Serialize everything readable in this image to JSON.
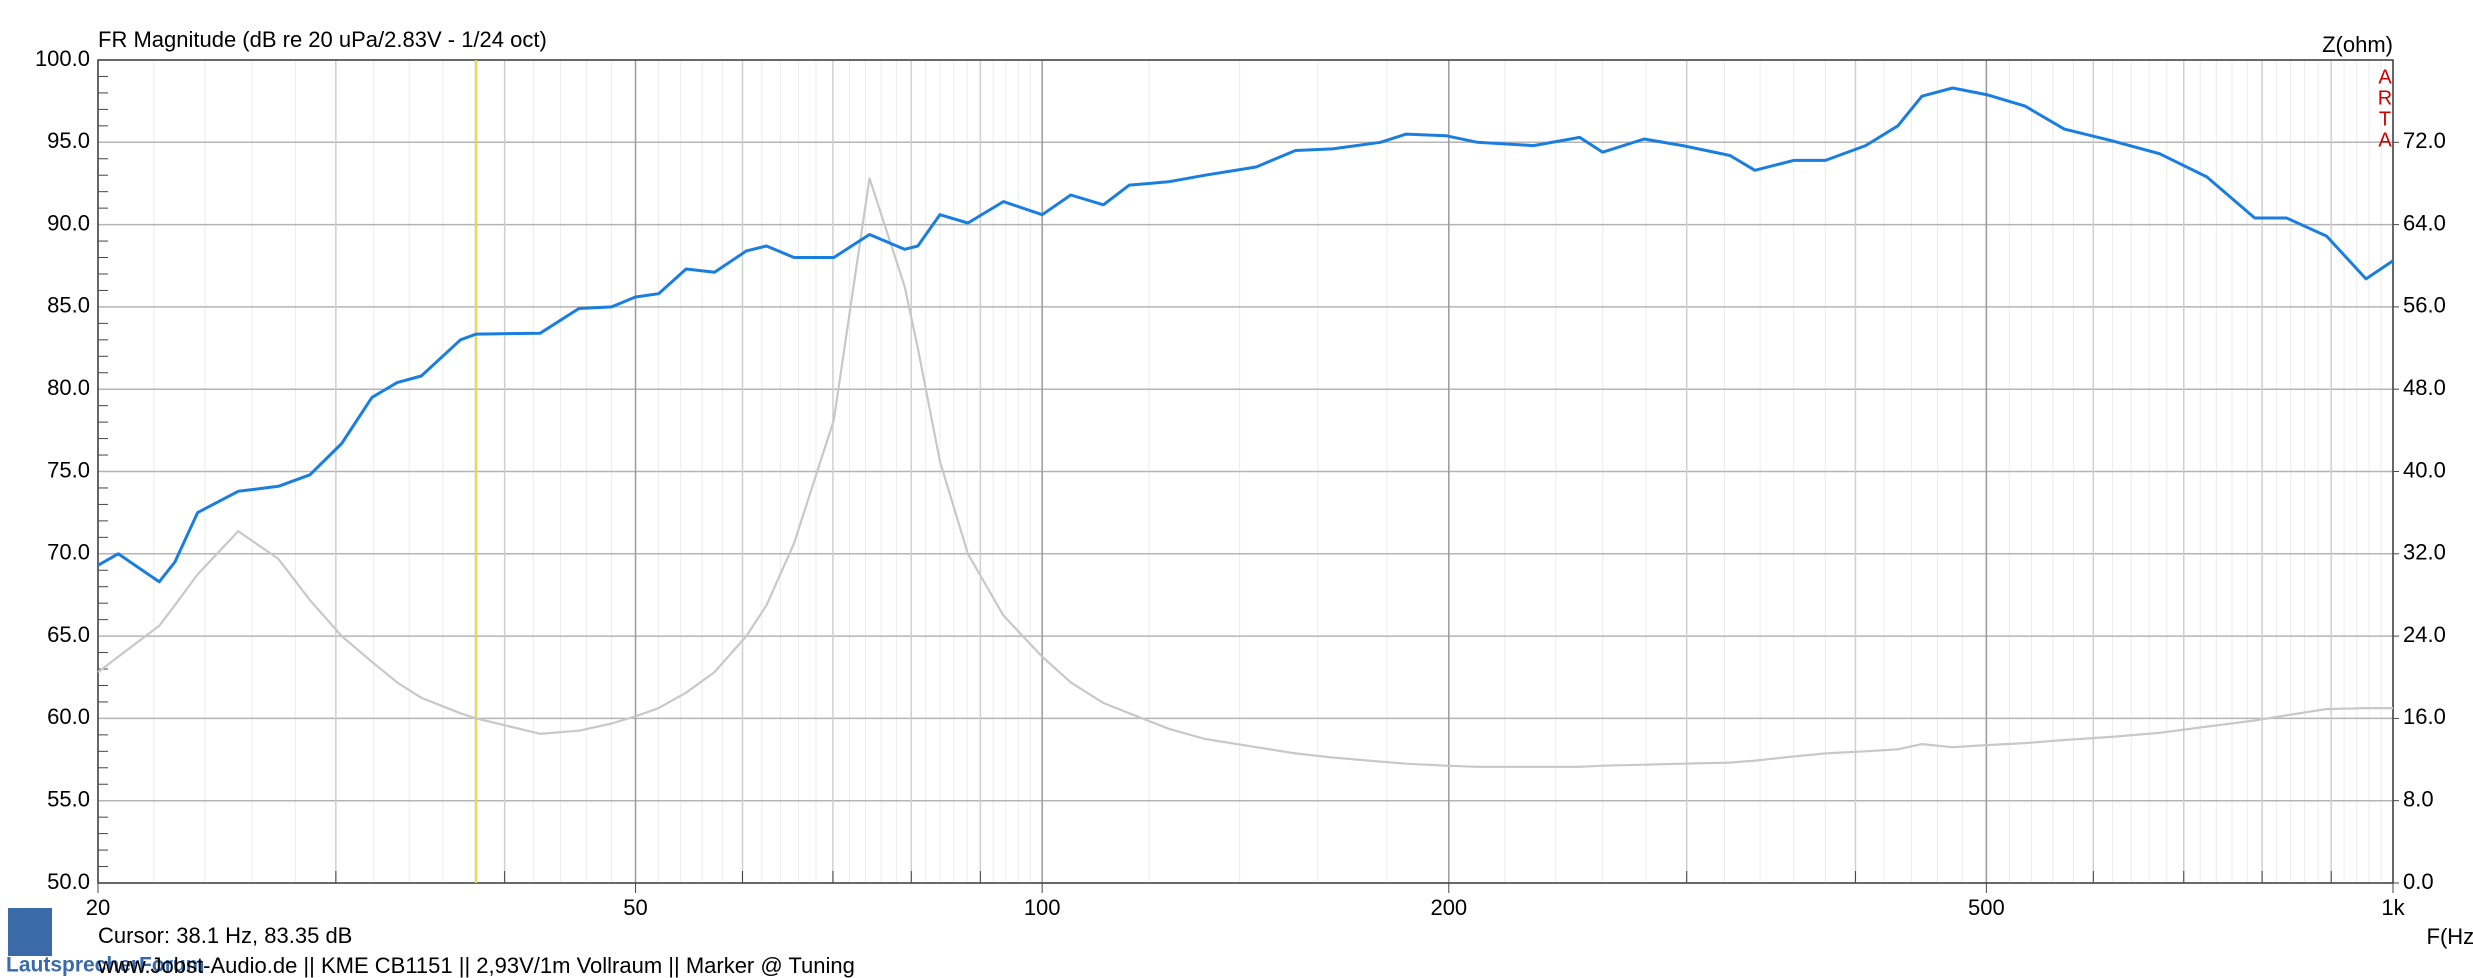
{
  "chart_data": {
    "type": "line",
    "title": "FR Magnitude (dB re 20 uPa/2.83V - 1/24 oct)",
    "y2_label": "Z(ohm)",
    "x_label": "F(Hz)",
    "brand": [
      "A",
      "R",
      "T",
      "A"
    ],
    "cursor_text": "Cursor: 38.1 Hz, 83.35 dB",
    "cursor_x": 38.1,
    "cursor_color": "#e8d84a",
    "footer": "www.Jobst-Audio.de  ||  KME CB1151  ||  2,93V/1m Vollraum  ||  Marker @ Tuning",
    "logo_text": "LautsprecherForum",
    "log_x": true,
    "grid": true,
    "xlim": [
      20,
      1000
    ],
    "xticks": [
      20,
      50,
      100,
      200,
      500,
      {
        "value": 1000,
        "label": "1k"
      }
    ],
    "xminor": [
      30,
      40,
      60,
      70,
      80,
      90,
      300,
      400,
      600,
      700,
      800,
      900
    ],
    "ylim": [
      50,
      100
    ],
    "yticks": [
      {
        "value": 50,
        "label": "50.0"
      },
      {
        "value": 55,
        "label": "55.0"
      },
      {
        "value": 60,
        "label": "60.0"
      },
      {
        "value": 65,
        "label": "65.0"
      },
      {
        "value": 70,
        "label": "70.0"
      },
      {
        "value": 75,
        "label": "75.0"
      },
      {
        "value": 80,
        "label": "80.0"
      },
      {
        "value": 85,
        "label": "85.0"
      },
      {
        "value": 90,
        "label": "90.0"
      },
      {
        "value": 95,
        "label": "95.0"
      },
      {
        "value": 100,
        "label": "100.0"
      }
    ],
    "y2lim": [
      0,
      80
    ],
    "y2ticks": [
      {
        "value": 0,
        "label": "0.0"
      },
      {
        "value": 8,
        "label": "8.0"
      },
      {
        "value": 16,
        "label": "16.0"
      },
      {
        "value": 24,
        "label": "24.0"
      },
      {
        "value": 32,
        "label": "32.0"
      },
      {
        "value": 40,
        "label": "40.0"
      },
      {
        "value": 48,
        "label": "48.0"
      },
      {
        "value": 56,
        "label": "56.0"
      },
      {
        "value": 64,
        "label": "64.0"
      },
      {
        "value": 72,
        "label": "72.0"
      }
    ],
    "x": [
      20,
      20.7,
      22.2,
      22.8,
      23.7,
      25.4,
      27.2,
      28.7,
      30.3,
      31.9,
      33.3,
      34.7,
      37.1,
      38.1,
      42.5,
      45.4,
      48,
      50,
      52,
      54.5,
      57.2,
      60.4,
      62.5,
      65.5,
      70.1,
      74.5,
      79.1,
      80.9,
      84,
      88.1,
      93.6,
      100,
      105,
      111,
      116,
      124,
      132,
      144,
      154,
      164,
      178,
      186,
      199,
      210,
      231,
      250,
      260,
      279,
      298,
      323,
      337,
      360,
      380,
      407,
      430,
      448,
      472,
      500,
      534,
      571,
      619,
      672,
      728,
      790,
      834,
      893,
      955,
      1000
    ],
    "series": [
      {
        "name": "FR",
        "color": "#1a7ee0",
        "values": [
          69.3,
          70.0,
          68.3,
          69.5,
          72.5,
          73.8,
          74.1,
          74.8,
          76.7,
          79.5,
          80.4,
          80.8,
          83.0,
          83.35,
          83.4,
          84.9,
          85.0,
          85.6,
          85.8,
          87.3,
          87.1,
          88.4,
          88.7,
          88.0,
          88.0,
          89.4,
          88.5,
          88.7,
          90.6,
          90.1,
          91.4,
          90.6,
          91.8,
          91.2,
          92.4,
          92.6,
          93.0,
          93.5,
          94.5,
          94.6,
          95.0,
          95.5,
          95.4,
          95.0,
          94.8,
          95.3,
          94.4,
          95.2,
          94.8,
          94.2,
          93.3,
          93.9,
          93.9,
          94.8,
          96.0,
          97.8,
          98.3,
          97.9,
          97.2,
          95.8,
          95.1,
          94.3,
          92.9,
          90.4,
          90.4,
          89.3,
          86.7,
          87.8
        ]
      },
      {
        "name": "Z",
        "color": "#c8c8c8",
        "axis": "y2",
        "values": [
          20.5,
          22,
          25,
          27,
          30,
          34.2,
          31.5,
          27.5,
          24,
          21.5,
          19.5,
          18,
          16.5,
          16,
          14.5,
          14.8,
          15.5,
          16.2,
          17,
          18.5,
          20.5,
          24,
          27,
          33,
          45,
          68.5,
          58,
          52,
          41,
          32,
          26,
          22,
          19.5,
          17.5,
          16.5,
          15,
          14,
          13.2,
          12.6,
          12.2,
          11.8,
          11.6,
          11.4,
          11.3,
          11.3,
          11.3,
          11.4,
          11.5,
          11.6,
          11.7,
          11.9,
          12.3,
          12.6,
          12.8,
          13.0,
          13.5,
          13.2,
          13.4,
          13.6,
          13.9,
          14.2,
          14.6,
          15.2,
          15.8,
          16.3,
          16.9,
          17.0,
          17.0
        ]
      }
    ]
  }
}
